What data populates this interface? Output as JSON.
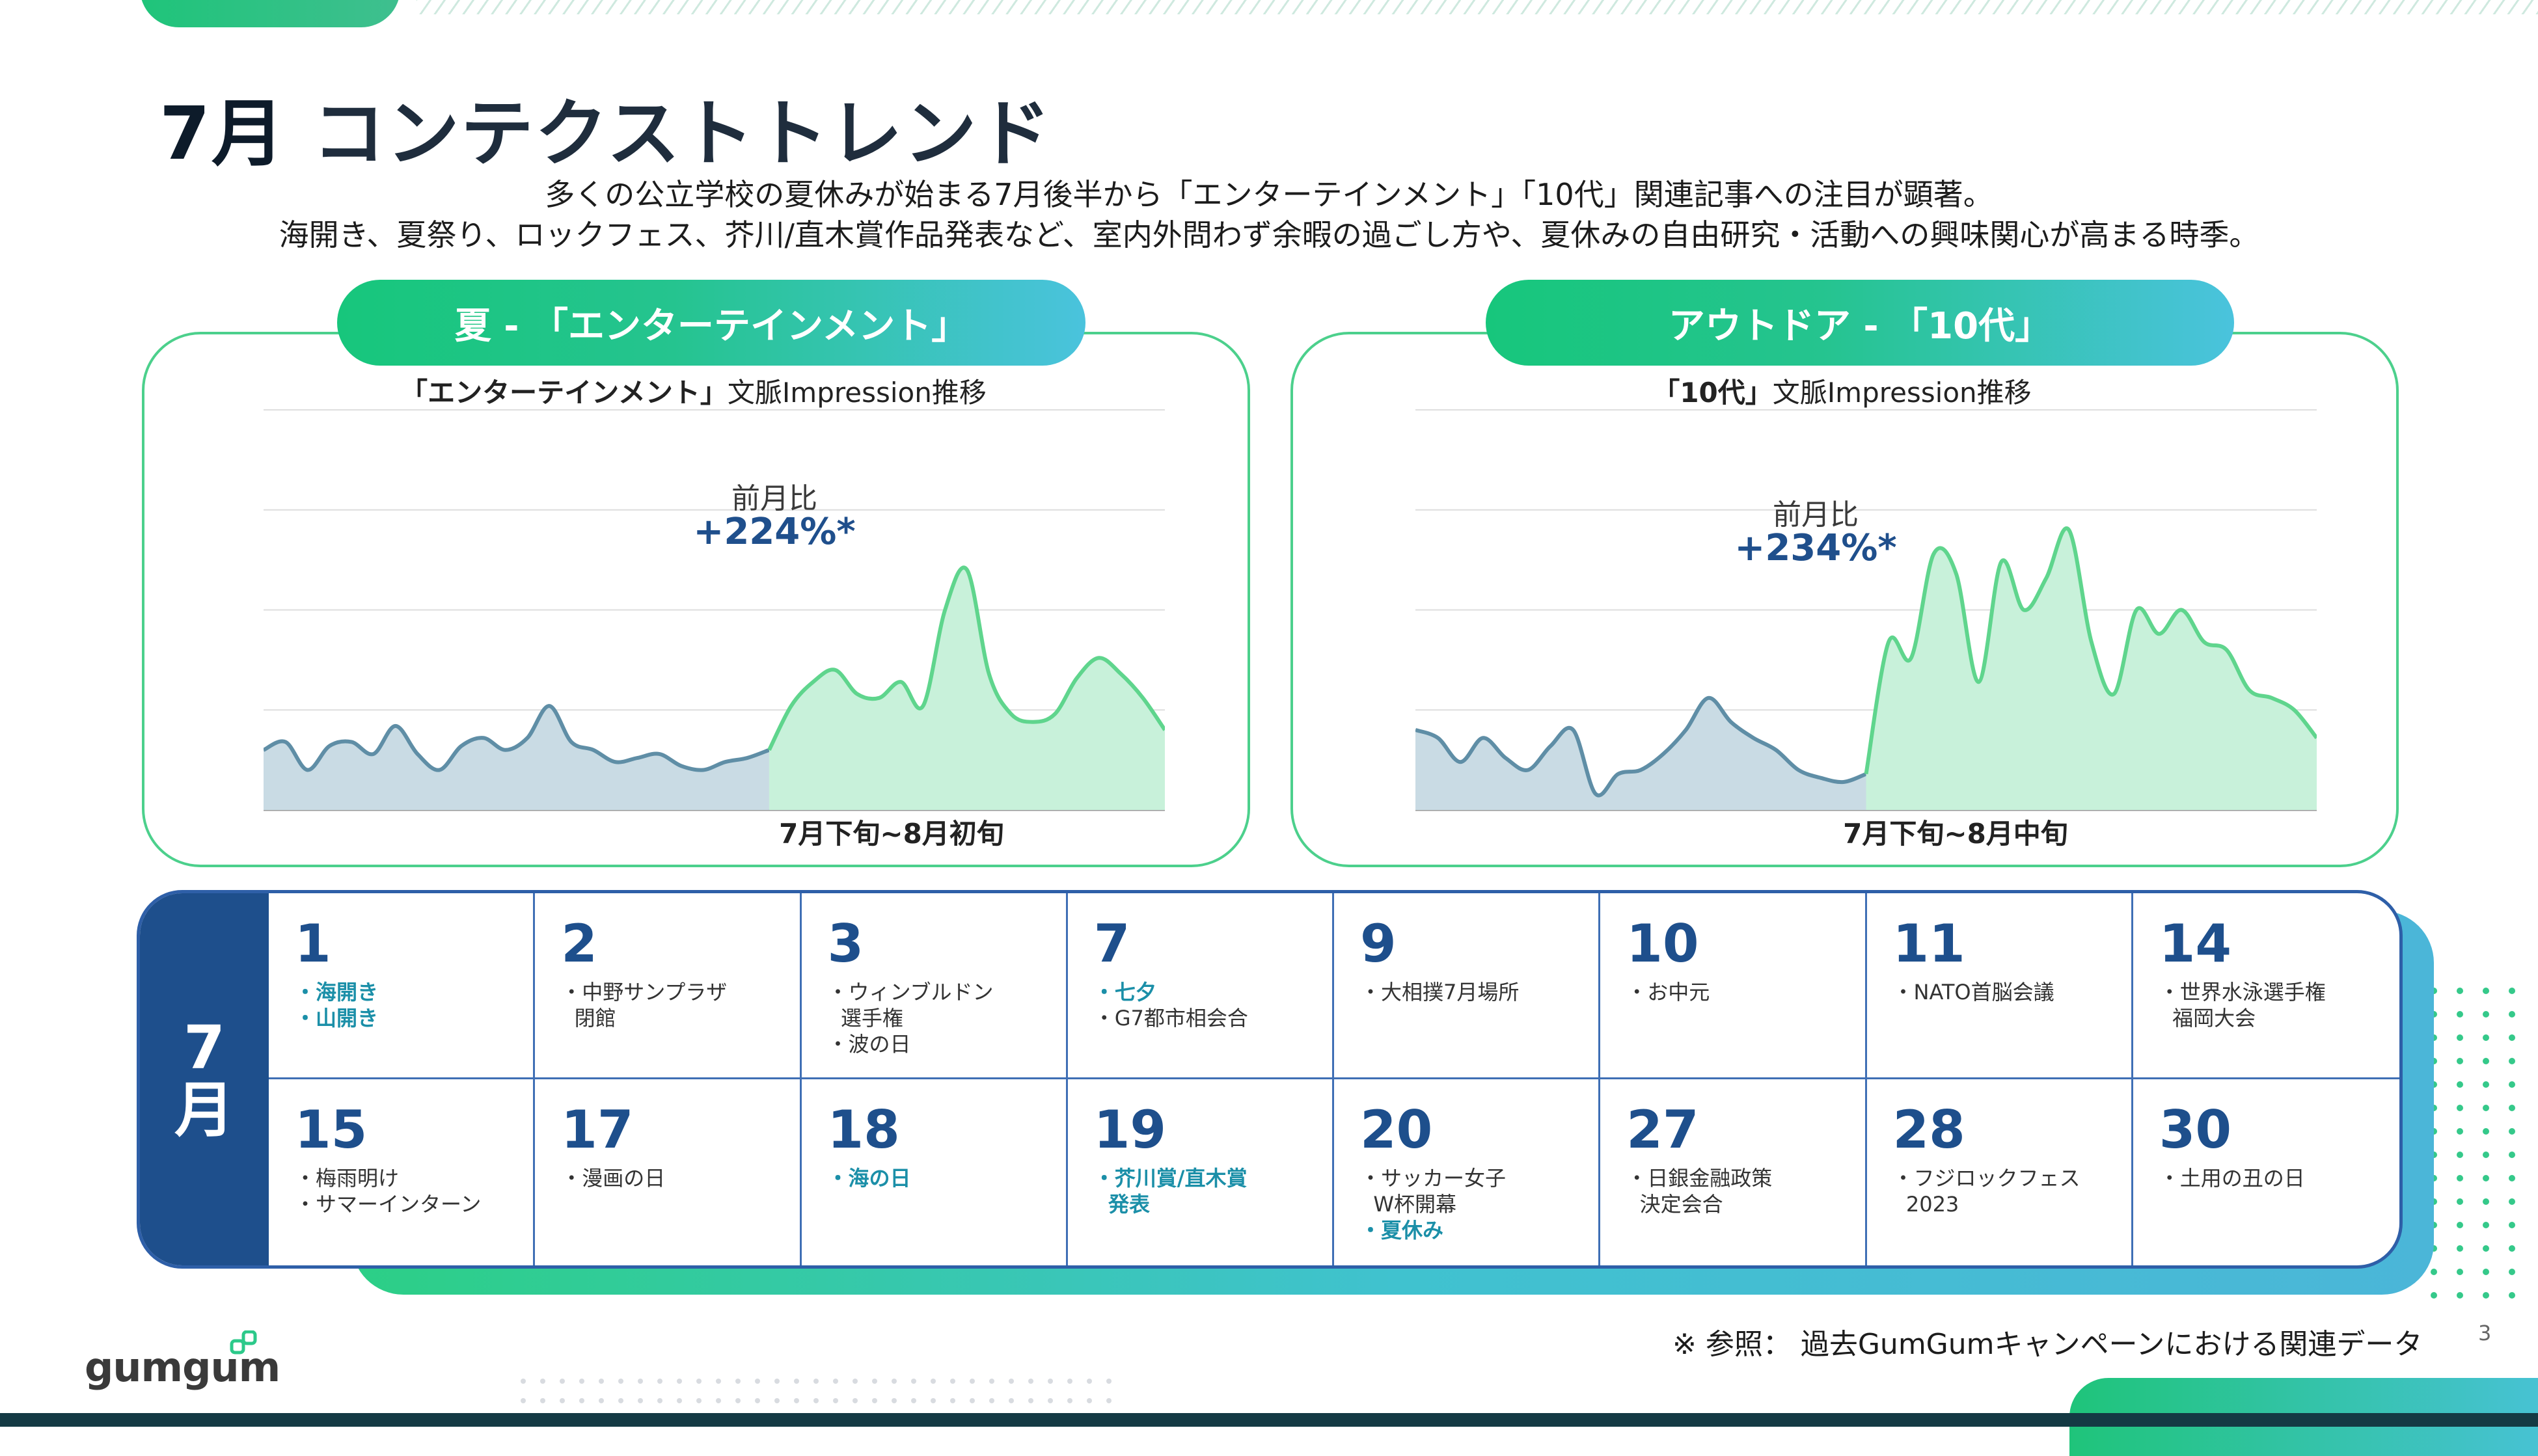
{
  "header": {
    "month": "7月",
    "title": "コンテクストトレンド",
    "subtitle_lines": [
      "多くの公立学校の夏休みが始まる7月後半から「エンターテインメント」「10代」関連記事への注目が顕著。",
      "海開き、夏祭り、ロックフェス、芥川/直木賞作品発表など、室内外問わず余暇の過ごし方や、夏休みの自由研究・活動への興味関心が高まる時季。"
    ]
  },
  "panels": [
    {
      "heading": "夏 - 「エンターテインメント」",
      "chart_title_bold": "「エンターテインメント」",
      "chart_title_rest": "文脈Impression推移",
      "mom_label": "前月比",
      "mom_value": "+224%*",
      "period": "7月下旬~8月初旬"
    },
    {
      "heading": "アウトドア - 「10代」",
      "chart_title_bold": "「10代」",
      "chart_title_rest": "文脈Impression推移",
      "mom_label": "前月比",
      "mom_value": "+234%*",
      "period": "7月下旬~8月中旬"
    }
  ],
  "chart_data": [
    {
      "type": "area",
      "title": "「エンターテインメント」文脈Impression推移",
      "xlabel": "7月下旬~8月初旬",
      "ylim": [
        0,
        100
      ],
      "series": [
        {
          "name": "before",
          "color": "#c9dbe4",
          "stroke": "#5f8ea6",
          "values": [
            15,
            17,
            10,
            16,
            17,
            14,
            21,
            14,
            10,
            16,
            18,
            15,
            18,
            26,
            17,
            15,
            12,
            13,
            14,
            11,
            10,
            12,
            13,
            15
          ]
        },
        {
          "name": "after",
          "color": "#c8f1da",
          "stroke": "#5fd58d",
          "values": [
            15,
            26,
            32,
            35,
            29,
            28,
            32,
            26,
            50,
            60,
            34,
            24,
            22,
            24,
            33,
            38,
            34,
            28,
            20
          ]
        }
      ]
    },
    {
      "type": "area",
      "title": "「10代」文脈Impression推移",
      "xlabel": "7月下旬~8月中旬",
      "ylim": [
        0,
        100
      ],
      "series": [
        {
          "name": "before",
          "color": "#c9dbe4",
          "stroke": "#5f8ea6",
          "values": [
            20,
            18,
            12,
            18,
            13,
            10,
            16,
            20,
            4,
            9,
            10,
            14,
            20,
            28,
            22,
            18,
            15,
            10,
            8,
            7,
            9
          ]
        },
        {
          "name": "after",
          "color": "#c8f1da",
          "stroke": "#5fd58d",
          "values": [
            9,
            42,
            38,
            64,
            59,
            32,
            62,
            50,
            58,
            70,
            42,
            29,
            50,
            44,
            50,
            42,
            40,
            30,
            28,
            25,
            18
          ]
        }
      ]
    }
  ],
  "calendar": {
    "month_num": "7",
    "month_unit": "月",
    "days": [
      {
        "day": "1",
        "events": [
          {
            "t": "・海開き",
            "hl": true
          },
          {
            "t": "・山開き",
            "hl": true
          }
        ]
      },
      {
        "day": "2",
        "events": [
          {
            "t": "・中野サンプラザ\n  閉館",
            "hl": false
          }
        ]
      },
      {
        "day": "3",
        "events": [
          {
            "t": "・ウィンブルドン\n  選手権",
            "hl": false
          },
          {
            "t": "・波の日",
            "hl": false
          }
        ]
      },
      {
        "day": "7",
        "events": [
          {
            "t": "・七夕",
            "hl": true
          },
          {
            "t": "・G7都市相会合",
            "hl": false
          }
        ]
      },
      {
        "day": "9",
        "events": [
          {
            "t": "・大相撲7月場所",
            "hl": false
          }
        ]
      },
      {
        "day": "10",
        "events": [
          {
            "t": "・お中元",
            "hl": false
          }
        ]
      },
      {
        "day": "11",
        "events": [
          {
            "t": "・NATO首脳会議",
            "hl": false
          }
        ]
      },
      {
        "day": "14",
        "events": [
          {
            "t": "・世界水泳選手権\n  福岡大会",
            "hl": false
          }
        ]
      },
      {
        "day": "15",
        "events": [
          {
            "t": "・梅雨明け",
            "hl": false
          },
          {
            "t": "・サマーインターン",
            "hl": false
          }
        ]
      },
      {
        "day": "17",
        "events": [
          {
            "t": "・漫画の日",
            "hl": false
          }
        ]
      },
      {
        "day": "18",
        "events": [
          {
            "t": "・海の日",
            "hl": true
          }
        ]
      },
      {
        "day": "19",
        "events": [
          {
            "t": "・芥川賞/直木賞\n  発表",
            "hl": true
          }
        ]
      },
      {
        "day": "20",
        "events": [
          {
            "t": "・サッカー女子\n  W杯開幕",
            "hl": false
          },
          {
            "t": "・夏休み",
            "hl": true
          }
        ]
      },
      {
        "day": "27",
        "events": [
          {
            "t": "・日銀金融政策\n  決定会合",
            "hl": false
          }
        ]
      },
      {
        "day": "28",
        "events": [
          {
            "t": "・フジロックフェス\n  2023",
            "hl": false
          }
        ]
      },
      {
        "day": "30",
        "events": [
          {
            "t": "・土用の丑の日",
            "hl": false
          }
        ]
      }
    ]
  },
  "footer": {
    "note": "※ 参照： 過去GumGumキャンペーンにおける関連データ",
    "page_number": "3",
    "logo": "gumgum"
  },
  "colors": {
    "navy": "#1e4f8c",
    "accent_green": "#1fc47a",
    "accent_teal": "#49c2d8"
  }
}
